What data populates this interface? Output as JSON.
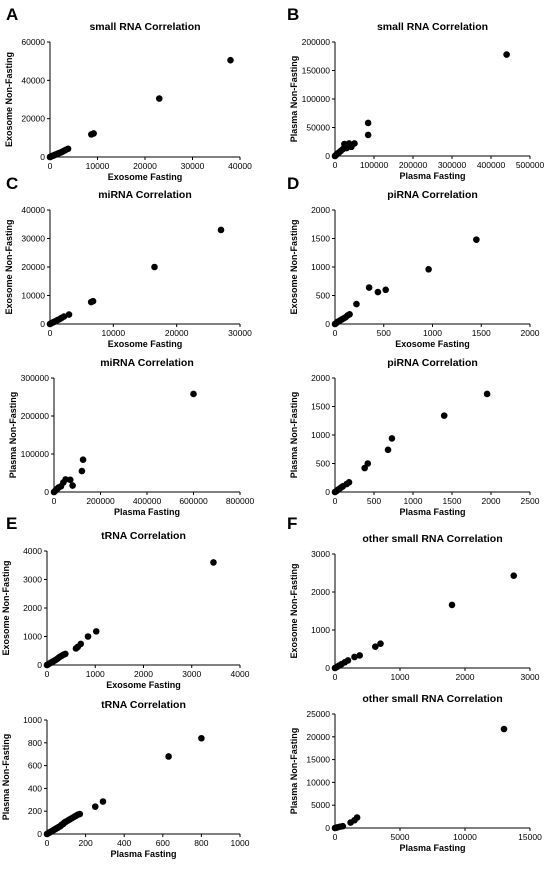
{
  "panel_letters": [
    "A",
    "B",
    "C",
    "D",
    "E",
    "F"
  ],
  "chart_data": [
    {
      "type": "scatter",
      "panel": "A",
      "title": "small RNA  Correlation",
      "xlabel": "Exosome Fasting",
      "ylabel": "Exosome Non-Fasting",
      "xlim": [
        0,
        40000
      ],
      "ylim": [
        0,
        60000
      ],
      "xticks": [
        0,
        10000,
        20000,
        30000,
        40000
      ],
      "yticks": [
        0,
        20000,
        40000,
        60000
      ],
      "xtick_labels": [
        "0",
        "10000",
        "20000",
        "30000",
        "40000"
      ],
      "ytick_labels": [
        "0",
        "20000",
        "40000",
        "60000"
      ],
      "points": [
        [
          0,
          0
        ],
        [
          200,
          250
        ],
        [
          400,
          500
        ],
        [
          600,
          650
        ],
        [
          800,
          800
        ],
        [
          1000,
          1100
        ],
        [
          1200,
          1300
        ],
        [
          1500,
          1600
        ],
        [
          1800,
          1900
        ],
        [
          2100,
          2200
        ],
        [
          2400,
          2500
        ],
        [
          2700,
          2900
        ],
        [
          3000,
          3300
        ],
        [
          3300,
          3700
        ],
        [
          3800,
          4300
        ],
        [
          8700,
          11800
        ],
        [
          9200,
          12300
        ],
        [
          23000,
          30500
        ],
        [
          38000,
          50500
        ]
      ]
    },
    {
      "type": "scatter",
      "panel": "B",
      "title": "small RNA Correlation",
      "xlabel": "Plasma Fasting",
      "ylabel": "Plasma Non-Fasting",
      "xlim": [
        0,
        500000
      ],
      "ylim": [
        0,
        200000
      ],
      "xticks": [
        0,
        100000,
        200000,
        300000,
        400000,
        500000
      ],
      "yticks": [
        0,
        50000,
        100000,
        150000,
        200000
      ],
      "xtick_labels": [
        "0",
        "100000",
        "200000",
        "300000",
        "400000",
        "500000"
      ],
      "ytick_labels": [
        "0",
        "50000",
        "100000",
        "150000",
        "200000"
      ],
      "points": [
        [
          0,
          0
        ],
        [
          3000,
          2000
        ],
        [
          6000,
          4000
        ],
        [
          10000,
          6000
        ],
        [
          15000,
          9000
        ],
        [
          20000,
          12000
        ],
        [
          24000,
          21000
        ],
        [
          30000,
          14000
        ],
        [
          36000,
          22000
        ],
        [
          42000,
          16000
        ],
        [
          50000,
          22000
        ],
        [
          85000,
          37000
        ],
        [
          85000,
          58000
        ],
        [
          440000,
          178000
        ]
      ]
    },
    {
      "type": "scatter",
      "panel": "C",
      "title": "miRNA  Correlation",
      "xlabel": "Exosome Fasting",
      "ylabel": "Exosome Non-Fasting",
      "xlim": [
        0,
        30000
      ],
      "ylim": [
        0,
        40000
      ],
      "xticks": [
        0,
        10000,
        20000,
        30000
      ],
      "yticks": [
        0,
        10000,
        20000,
        30000,
        40000
      ],
      "xtick_labels": [
        "0",
        "10000",
        "20000",
        "30000"
      ],
      "ytick_labels": [
        "0",
        "10000",
        "20000",
        "30000",
        "40000"
      ],
      "points": [
        [
          0,
          0
        ],
        [
          200,
          300
        ],
        [
          400,
          500
        ],
        [
          600,
          700
        ],
        [
          800,
          900
        ],
        [
          1000,
          1100
        ],
        [
          1200,
          1400
        ],
        [
          1500,
          1700
        ],
        [
          1800,
          2100
        ],
        [
          2200,
          2600
        ],
        [
          3000,
          3300
        ],
        [
          6500,
          7700
        ],
        [
          6800,
          8000
        ],
        [
          16500,
          20000
        ],
        [
          27000,
          33000
        ]
      ]
    },
    {
      "type": "scatter",
      "panel": "D",
      "title": "piRNA Correlation",
      "xlabel": "Exosome Fasting",
      "ylabel": "Exosome Non-Fasting",
      "xlim": [
        0,
        2000
      ],
      "ylim": [
        0,
        2000
      ],
      "xticks": [
        0,
        500,
        1000,
        1500,
        2000
      ],
      "yticks": [
        0,
        500,
        1000,
        1500,
        2000
      ],
      "xtick_labels": [
        "0",
        "500",
        "1000",
        "1500",
        "2000"
      ],
      "ytick_labels": [
        "0",
        "500",
        "1000",
        "1500",
        "2000"
      ],
      "points": [
        [
          0,
          0
        ],
        [
          15,
          20
        ],
        [
          30,
          40
        ],
        [
          50,
          60
        ],
        [
          70,
          80
        ],
        [
          90,
          100
        ],
        [
          110,
          120
        ],
        [
          130,
          150
        ],
        [
          150,
          170
        ],
        [
          220,
          350
        ],
        [
          350,
          640
        ],
        [
          440,
          560
        ],
        [
          520,
          600
        ],
        [
          960,
          960
        ],
        [
          1450,
          1480
        ]
      ]
    },
    {
      "type": "scatter",
      "panel": "C",
      "title": "miRNA Correlation",
      "xlabel": "Plasma Fasting",
      "ylabel": "Plasma Non-Fasting",
      "xlim": [
        0,
        800000
      ],
      "ylim": [
        0,
        300000
      ],
      "xticks": [
        0,
        200000,
        400000,
        600000,
        800000
      ],
      "yticks": [
        0,
        100000,
        200000,
        300000
      ],
      "xtick_labels": [
        "0",
        "200000",
        "400000",
        "600000",
        "800000"
      ],
      "ytick_labels": [
        "0",
        "100000",
        "200000",
        "300000"
      ],
      "points": [
        [
          0,
          0
        ],
        [
          5000,
          3000
        ],
        [
          10000,
          6000
        ],
        [
          15000,
          9000
        ],
        [
          20000,
          12000
        ],
        [
          30000,
          15000
        ],
        [
          40000,
          25000
        ],
        [
          50000,
          33000
        ],
        [
          70000,
          32000
        ],
        [
          80000,
          17000
        ],
        [
          120000,
          55000
        ],
        [
          125000,
          85000
        ],
        [
          600000,
          258000
        ]
      ]
    },
    {
      "type": "scatter",
      "panel": "D",
      "title": "piRNA Correlation",
      "xlabel": "Plasma Fasting",
      "ylabel": "Plasma Non-Fasting",
      "xlim": [
        0,
        2500
      ],
      "ylim": [
        0,
        2000
      ],
      "xticks": [
        0,
        500,
        1000,
        1500,
        2000,
        2500
      ],
      "yticks": [
        0,
        500,
        1000,
        1500,
        2000
      ],
      "xtick_labels": [
        "0",
        "500",
        "1000",
        "1500",
        "2000",
        "2500"
      ],
      "ytick_labels": [
        "0",
        "500",
        "1000",
        "1500",
        "2000"
      ],
      "points": [
        [
          0,
          0
        ],
        [
          20,
          20
        ],
        [
          40,
          40
        ],
        [
          60,
          60
        ],
        [
          80,
          80
        ],
        [
          100,
          100
        ],
        [
          150,
          140
        ],
        [
          180,
          170
        ],
        [
          380,
          420
        ],
        [
          420,
          500
        ],
        [
          680,
          740
        ],
        [
          730,
          940
        ],
        [
          1400,
          1340
        ],
        [
          1950,
          1720
        ]
      ]
    },
    {
      "type": "scatter",
      "panel": "E",
      "title": "tRNA Correlation",
      "xlabel": "Exosome Fasting",
      "ylabel": "Exosome Non-Fasting",
      "xlim": [
        0,
        4000
      ],
      "ylim": [
        0,
        4000
      ],
      "xticks": [
        0,
        1000,
        2000,
        3000,
        4000
      ],
      "yticks": [
        0,
        1000,
        2000,
        3000,
        4000
      ],
      "xtick_labels": [
        "0",
        "1000",
        "2000",
        "3000",
        "4000"
      ],
      "ytick_labels": [
        "0",
        "1000",
        "2000",
        "3000",
        "4000"
      ],
      "points": [
        [
          0,
          0
        ],
        [
          20,
          20
        ],
        [
          50,
          50
        ],
        [
          80,
          80
        ],
        [
          110,
          110
        ],
        [
          140,
          140
        ],
        [
          170,
          170
        ],
        [
          200,
          200
        ],
        [
          230,
          240
        ],
        [
          260,
          280
        ],
        [
          300,
          320
        ],
        [
          340,
          360
        ],
        [
          380,
          390
        ],
        [
          600,
          580
        ],
        [
          640,
          640
        ],
        [
          700,
          740
        ],
        [
          850,
          1000
        ],
        [
          1020,
          1180
        ],
        [
          3450,
          3600
        ]
      ]
    },
    {
      "type": "scatter",
      "panel": "F",
      "title": "other small RNA Correlation",
      "xlabel": "",
      "ylabel": "Exosome Non-Fasting",
      "xlim": [
        0,
        3000
      ],
      "ylim": [
        0,
        3000
      ],
      "xticks": [
        0,
        1000,
        2000,
        3000
      ],
      "yticks": [
        0,
        1000,
        2000,
        3000
      ],
      "xtick_labels": [
        "0",
        "1000",
        "2000",
        "3000"
      ],
      "ytick_labels": [
        "0",
        "1000",
        "2000",
        "3000"
      ],
      "points": [
        [
          0,
          0
        ],
        [
          30,
          30
        ],
        [
          60,
          60
        ],
        [
          100,
          100
        ],
        [
          150,
          150
        ],
        [
          200,
          200
        ],
        [
          300,
          290
        ],
        [
          380,
          330
        ],
        [
          620,
          560
        ],
        [
          700,
          640
        ],
        [
          1800,
          1660
        ],
        [
          2750,
          2430
        ]
      ]
    },
    {
      "type": "scatter",
      "panel": "E",
      "title": "tRNA Correlation",
      "xlabel": "Plasma Fasting",
      "ylabel": "Plasma Non-Fasting",
      "xlim": [
        0,
        1000
      ],
      "ylim": [
        0,
        1000
      ],
      "xticks": [
        0,
        200,
        400,
        600,
        800,
        1000
      ],
      "yticks": [
        0,
        200,
        400,
        600,
        800,
        1000
      ],
      "xtick_labels": [
        "0",
        "200",
        "400",
        "600",
        "800",
        "1000"
      ],
      "ytick_labels": [
        "0",
        "200",
        "400",
        "600",
        "800",
        "1000"
      ],
      "points": [
        [
          0,
          0
        ],
        [
          5,
          5
        ],
        [
          10,
          10
        ],
        [
          15,
          15
        ],
        [
          20,
          20
        ],
        [
          25,
          25
        ],
        [
          30,
          30
        ],
        [
          35,
          35
        ],
        [
          40,
          40
        ],
        [
          45,
          45
        ],
        [
          50,
          50
        ],
        [
          55,
          55
        ],
        [
          60,
          60
        ],
        [
          65,
          65
        ],
        [
          70,
          70
        ],
        [
          75,
          80
        ],
        [
          80,
          85
        ],
        [
          85,
          90
        ],
        [
          90,
          100
        ],
        [
          95,
          105
        ],
        [
          100,
          110
        ],
        [
          110,
          120
        ],
        [
          120,
          130
        ],
        [
          130,
          140
        ],
        [
          140,
          150
        ],
        [
          150,
          160
        ],
        [
          160,
          170
        ],
        [
          170,
          175
        ],
        [
          250,
          240
        ],
        [
          290,
          285
        ],
        [
          630,
          680
        ],
        [
          800,
          840
        ]
      ]
    },
    {
      "type": "scatter",
      "panel": "F",
      "title": "other small RNA Correlation",
      "xlabel": "Plasma Fasting",
      "ylabel": "Plasma Non-Fasting",
      "xlim": [
        0,
        15000
      ],
      "ylim": [
        0,
        25000
      ],
      "xticks": [
        0,
        5000,
        10000,
        15000
      ],
      "yticks": [
        0,
        5000,
        10000,
        15000,
        20000,
        25000
      ],
      "xtick_labels": [
        "0",
        "5000",
        "10000",
        "15000"
      ],
      "ytick_labels": [
        "0",
        "5000",
        "10000",
        "15000",
        "20000",
        "25000"
      ],
      "points": [
        [
          0,
          0
        ],
        [
          100,
          80
        ],
        [
          200,
          150
        ],
        [
          400,
          300
        ],
        [
          600,
          400
        ],
        [
          1200,
          1200
        ],
        [
          1500,
          1700
        ],
        [
          1700,
          2300
        ],
        [
          13000,
          21700
        ]
      ]
    }
  ]
}
